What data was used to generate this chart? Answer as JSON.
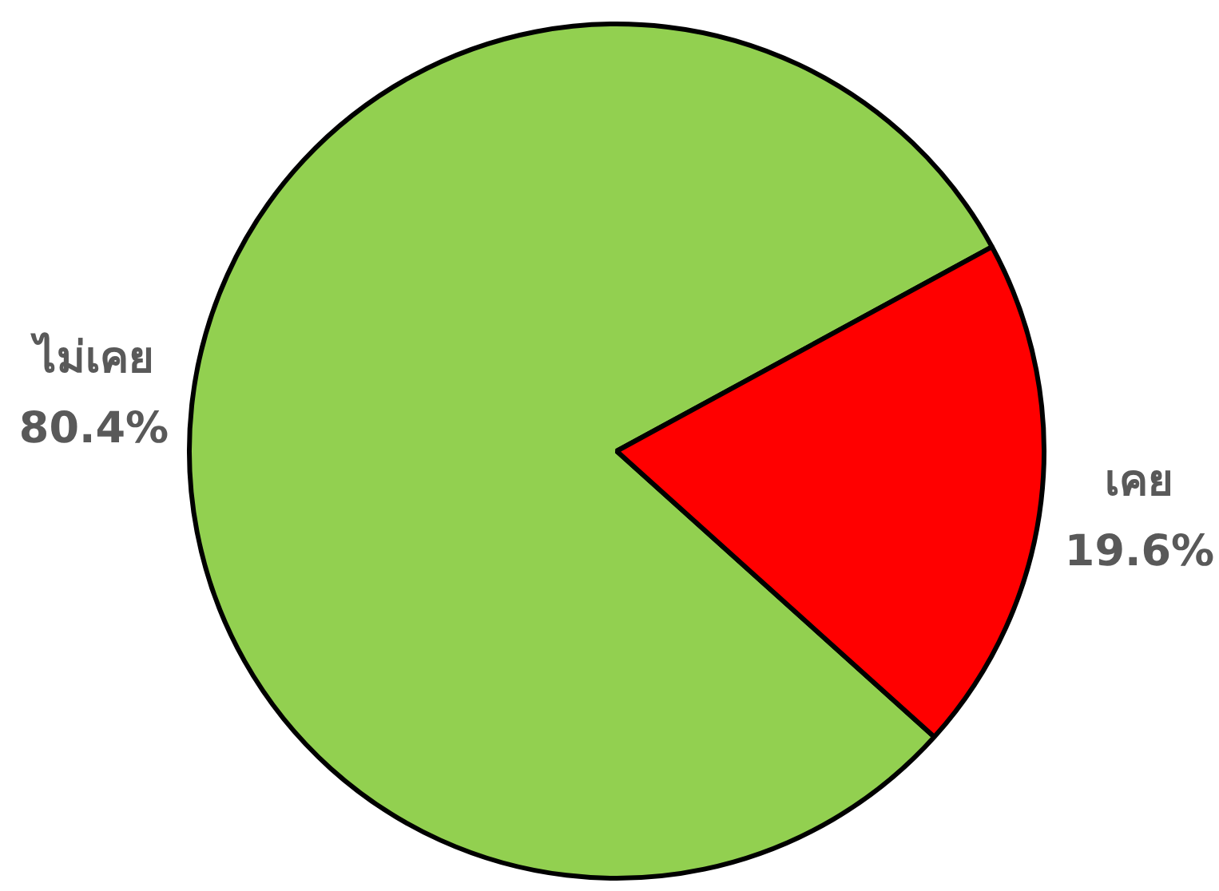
{
  "chart_data": {
    "type": "pie",
    "categories": [
      "ไม่เคย",
      "เคย"
    ],
    "values": [
      80.4,
      19.6
    ],
    "colors": [
      "#92d050",
      "#ff0000"
    ],
    "value_labels": [
      "80.4%",
      "19.6%"
    ],
    "legend": false
  }
}
